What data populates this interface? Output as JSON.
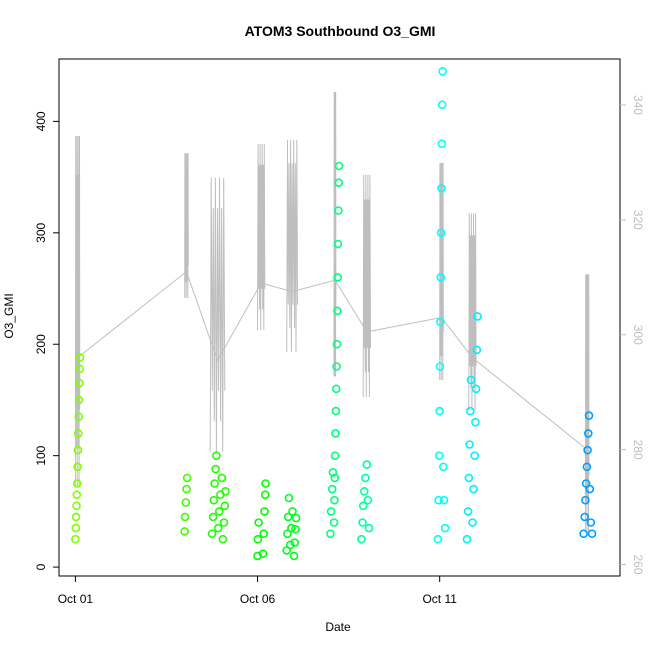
{
  "chart_data": {
    "type": "scatter",
    "title": "ATOM3 Southbound O3_GMI",
    "xlabel": "Date",
    "ylabel": "O3_GMI",
    "x_ticks": [
      {
        "day": 1,
        "label": "Oct 01"
      },
      {
        "day": 6,
        "label": "Oct 06"
      },
      {
        "day": 11,
        "label": "Oct 11"
      }
    ],
    "xlim_days": [
      0.55,
      15.95
    ],
    "ylim": [
      -8,
      456
    ],
    "y_ticks": [
      0,
      100,
      200,
      300,
      400
    ],
    "y2lim": [
      258,
      348
    ],
    "y2_ticks": [
      260,
      280,
      300,
      320,
      340
    ],
    "y2_color": "#bebebe",
    "grid": false,
    "legend": "none",
    "secondary_series": {
      "color": "#bebebe",
      "description_segments": [
        {
          "day_start": 1.0,
          "day_end": 1.12,
          "y2_min": 270,
          "y2_max": 338
        },
        {
          "day_start": 4.0,
          "day_end": 4.1,
          "y2_min": 305,
          "y2_max": 333
        },
        {
          "day_start": 4.7,
          "day_end": 5.1,
          "y2_min": 277,
          "y2_max": 330
        },
        {
          "day_start": 6.0,
          "day_end": 6.2,
          "y2_min": 299,
          "y2_max": 335
        },
        {
          "day_start": 6.8,
          "day_end": 7.1,
          "y2_min": 295,
          "y2_max": 336
        },
        {
          "day_start": 8.1,
          "day_end": 8.15,
          "y2_min": 290,
          "y2_max": 345
        },
        {
          "day_start": 8.9,
          "day_end": 9.1,
          "y2_min": 287,
          "y2_max": 330
        },
        {
          "day_start": 11.0,
          "day_end": 11.1,
          "y2_min": 290,
          "y2_max": 332
        },
        {
          "day_start": 11.8,
          "day_end": 12.0,
          "y2_min": 285,
          "y2_max": 323
        },
        {
          "day_start": 15.0,
          "day_end": 15.1,
          "y2_min": 263,
          "y2_max": 313
        }
      ]
    },
    "series": [
      {
        "color": "#80ff00",
        "points": [
          {
            "x": 1.0,
            "y": 25
          },
          {
            "x": 1.01,
            "y": 35
          },
          {
            "x": 1.02,
            "y": 45
          },
          {
            "x": 1.03,
            "y": 55
          },
          {
            "x": 1.04,
            "y": 65
          },
          {
            "x": 1.05,
            "y": 75
          },
          {
            "x": 1.06,
            "y": 90
          },
          {
            "x": 1.07,
            "y": 105
          },
          {
            "x": 1.08,
            "y": 120
          },
          {
            "x": 1.09,
            "y": 135
          },
          {
            "x": 1.1,
            "y": 150
          },
          {
            "x": 1.11,
            "y": 165
          },
          {
            "x": 1.12,
            "y": 178
          },
          {
            "x": 1.13,
            "y": 188
          }
        ]
      },
      {
        "color": "#40ff00",
        "points": [
          {
            "x": 4.0,
            "y": 32
          },
          {
            "x": 4.01,
            "y": 45
          },
          {
            "x": 4.03,
            "y": 58
          },
          {
            "x": 4.05,
            "y": 70
          },
          {
            "x": 4.07,
            "y": 80
          }
        ]
      },
      {
        "color": "#20ff00",
        "points": [
          {
            "x": 4.75,
            "y": 30
          },
          {
            "x": 4.78,
            "y": 45
          },
          {
            "x": 4.8,
            "y": 60
          },
          {
            "x": 4.82,
            "y": 75
          },
          {
            "x": 4.85,
            "y": 88
          },
          {
            "x": 4.87,
            "y": 100
          },
          {
            "x": 4.92,
            "y": 35
          },
          {
            "x": 4.95,
            "y": 50
          },
          {
            "x": 4.98,
            "y": 65
          },
          {
            "x": 5.02,
            "y": 80
          },
          {
            "x": 5.05,
            "y": 25
          },
          {
            "x": 5.08,
            "y": 40
          },
          {
            "x": 5.1,
            "y": 55
          },
          {
            "x": 5.12,
            "y": 68
          }
        ]
      },
      {
        "color": "#00ff00",
        "points": [
          {
            "x": 6.0,
            "y": 10
          },
          {
            "x": 6.01,
            "y": 25
          },
          {
            "x": 6.03,
            "y": 40
          },
          {
            "x": 6.15,
            "y": 12
          },
          {
            "x": 6.17,
            "y": 30
          },
          {
            "x": 6.19,
            "y": 50
          },
          {
            "x": 6.21,
            "y": 65
          },
          {
            "x": 6.22,
            "y": 75
          }
        ]
      },
      {
        "color": "#00ff20",
        "points": [
          {
            "x": 6.8,
            "y": 15
          },
          {
            "x": 6.82,
            "y": 30
          },
          {
            "x": 6.84,
            "y": 45
          },
          {
            "x": 6.86,
            "y": 62
          },
          {
            "x": 6.9,
            "y": 20
          },
          {
            "x": 6.93,
            "y": 35
          },
          {
            "x": 6.96,
            "y": 50
          },
          {
            "x": 7.0,
            "y": 10
          },
          {
            "x": 7.02,
            "y": 22
          },
          {
            "x": 7.04,
            "y": 34
          },
          {
            "x": 7.06,
            "y": 44
          }
        ]
      },
      {
        "color": "#00ff80",
        "points": [
          {
            "x": 8.0,
            "y": 30
          },
          {
            "x": 8.02,
            "y": 50
          },
          {
            "x": 8.05,
            "y": 70
          },
          {
            "x": 8.07,
            "y": 85
          },
          {
            "x": 8.1,
            "y": 40
          },
          {
            "x": 8.11,
            "y": 60
          },
          {
            "x": 8.12,
            "y": 80
          },
          {
            "x": 8.13,
            "y": 100
          },
          {
            "x": 8.14,
            "y": 120
          },
          {
            "x": 8.15,
            "y": 140
          },
          {
            "x": 8.16,
            "y": 160
          },
          {
            "x": 8.17,
            "y": 180
          },
          {
            "x": 8.18,
            "y": 200
          },
          {
            "x": 8.19,
            "y": 230
          },
          {
            "x": 8.2,
            "y": 260
          },
          {
            "x": 8.21,
            "y": 290
          },
          {
            "x": 8.22,
            "y": 320
          },
          {
            "x": 8.23,
            "y": 345
          },
          {
            "x": 8.24,
            "y": 360
          }
        ]
      },
      {
        "color": "#00ff9f",
        "points": [
          {
            "x": 8.85,
            "y": 25
          },
          {
            "x": 8.88,
            "y": 40
          },
          {
            "x": 8.9,
            "y": 55
          },
          {
            "x": 8.93,
            "y": 68
          },
          {
            "x": 8.96,
            "y": 80
          },
          {
            "x": 9.0,
            "y": 92
          },
          {
            "x": 9.03,
            "y": 60
          },
          {
            "x": 9.06,
            "y": 35
          }
        ]
      },
      {
        "color": "#00ffff",
        "points": [
          {
            "x": 10.95,
            "y": 25
          },
          {
            "x": 10.97,
            "y": 60
          },
          {
            "x": 10.99,
            "y": 100
          },
          {
            "x": 11.0,
            "y": 140
          },
          {
            "x": 11.01,
            "y": 180
          },
          {
            "x": 11.02,
            "y": 220
          },
          {
            "x": 11.03,
            "y": 260
          },
          {
            "x": 11.04,
            "y": 300
          },
          {
            "x": 11.05,
            "y": 340
          },
          {
            "x": 11.06,
            "y": 380
          },
          {
            "x": 11.07,
            "y": 415
          },
          {
            "x": 11.08,
            "y": 445
          },
          {
            "x": 11.1,
            "y": 90
          },
          {
            "x": 11.12,
            "y": 60
          },
          {
            "x": 11.15,
            "y": 35
          }
        ]
      },
      {
        "color": "#00f0ff",
        "points": [
          {
            "x": 11.75,
            "y": 25
          },
          {
            "x": 11.78,
            "y": 50
          },
          {
            "x": 11.8,
            "y": 80
          },
          {
            "x": 11.82,
            "y": 110
          },
          {
            "x": 11.84,
            "y": 140
          },
          {
            "x": 11.86,
            "y": 168
          },
          {
            "x": 11.9,
            "y": 40
          },
          {
            "x": 11.93,
            "y": 70
          },
          {
            "x": 11.96,
            "y": 100
          },
          {
            "x": 11.98,
            "y": 130
          },
          {
            "x": 12.0,
            "y": 160
          },
          {
            "x": 12.02,
            "y": 195
          },
          {
            "x": 12.04,
            "y": 225
          }
        ]
      },
      {
        "color": "#00a0ff",
        "points": [
          {
            "x": 14.95,
            "y": 30
          },
          {
            "x": 14.98,
            "y": 45
          },
          {
            "x": 15.0,
            "y": 60
          },
          {
            "x": 15.02,
            "y": 75
          },
          {
            "x": 15.04,
            "y": 90
          },
          {
            "x": 15.06,
            "y": 105
          },
          {
            "x": 15.08,
            "y": 120
          },
          {
            "x": 15.1,
            "y": 136
          },
          {
            "x": 15.12,
            "y": 70
          },
          {
            "x": 15.15,
            "y": 40
          },
          {
            "x": 15.18,
            "y": 30
          }
        ]
      }
    ]
  }
}
